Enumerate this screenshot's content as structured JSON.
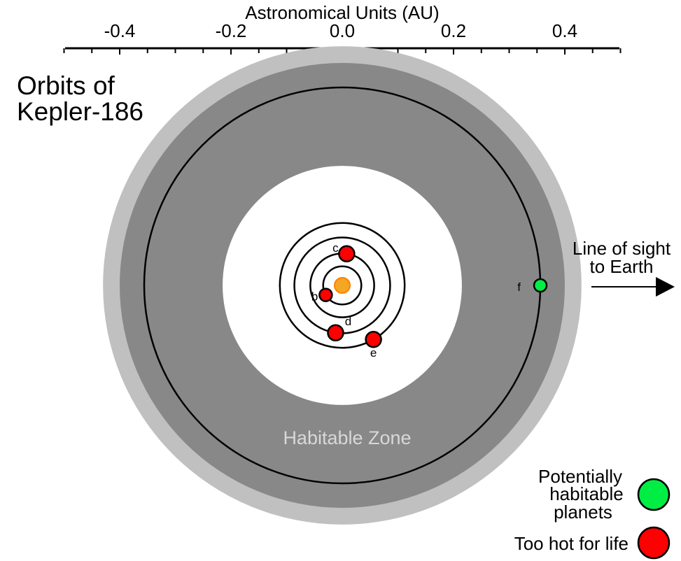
{
  "axis": {
    "label": "Astronomical Units (AU)",
    "range": [
      -0.5,
      0.5
    ],
    "major_ticks": [
      -0.4,
      -0.2,
      0.0,
      0.2,
      0.4
    ],
    "tick_labels": [
      "-0.4",
      "-0.2",
      "0.0",
      "0.2",
      "0.4"
    ],
    "minor_tick_step": 0.05
  },
  "title": {
    "line1": "Orbits of",
    "line2": "Kepler-186"
  },
  "habitable_zone": {
    "label": "Habitable Zone",
    "outer_optimistic_au": 0.43,
    "outer_au": 0.4,
    "inner_au": 0.215,
    "colors": {
      "outer_ring": "#c0c0c0",
      "zone": "#888888",
      "inner": "#ffffff"
    }
  },
  "star": {
    "name": "Kepler-186",
    "color": "#f5a623",
    "edge_color": "#ff7f00"
  },
  "planets": [
    {
      "letter": "b",
      "orbit_au": 0.0343,
      "angle_deg": 210,
      "status": "hot",
      "size": "small"
    },
    {
      "letter": "c",
      "orbit_au": 0.0574,
      "angle_deg": 82,
      "status": "hot",
      "size": "medium"
    },
    {
      "letter": "d",
      "orbit_au": 0.0861,
      "angle_deg": 262,
      "status": "hot",
      "size": "medium"
    },
    {
      "letter": "e",
      "orbit_au": 0.1122,
      "angle_deg": 300,
      "status": "hot",
      "size": "medium"
    },
    {
      "letter": "f",
      "orbit_au": 0.356,
      "angle_deg": 0,
      "status": "habitable",
      "size": "small"
    }
  ],
  "line_of_sight": {
    "line1": "Line of sight",
    "line2": "to Earth"
  },
  "legend": {
    "habitable": {
      "line1": "Potentially",
      "line2": "habitable",
      "line3": "planets",
      "color": "#00ee44"
    },
    "hot": {
      "label": "Too hot for life",
      "color": "#ff0000"
    }
  }
}
